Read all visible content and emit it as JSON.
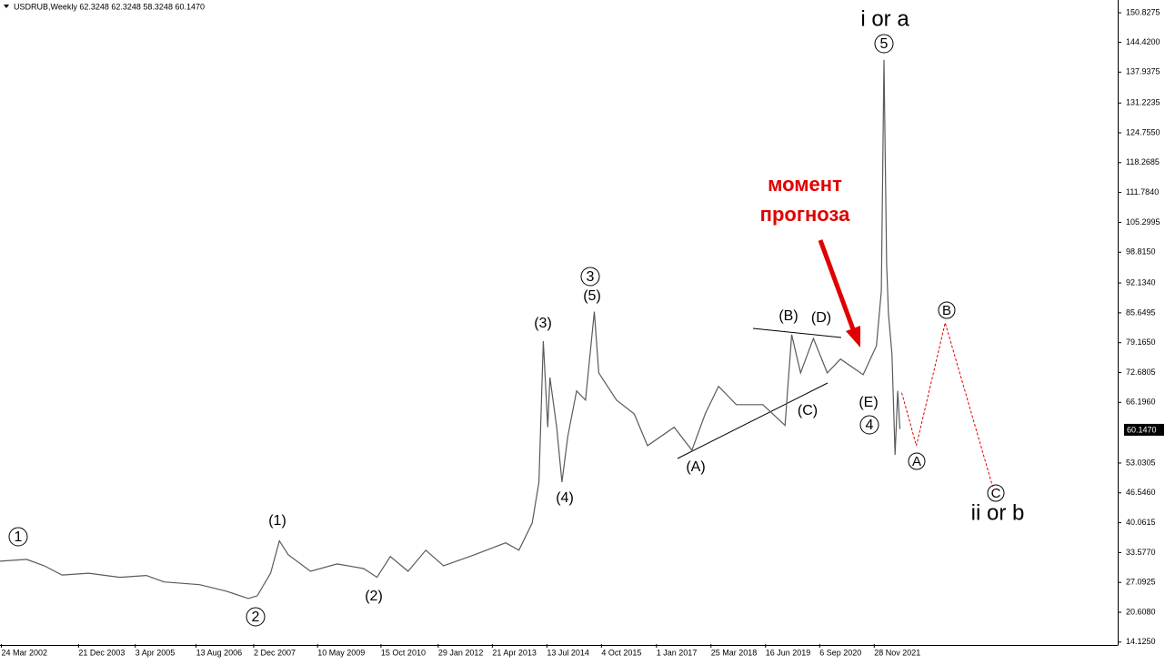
{
  "chart_data": {
    "type": "line",
    "header": "USDRUB,Weekly  62.3248 62.3248 58.3248 60.1470",
    "xlim": [
      2002.2,
      2027.4
    ],
    "ylim": [
      13.7,
      153.6
    ],
    "xticks": [
      {
        "value": 2002.23,
        "label": "24 Mar 2002"
      },
      {
        "value": 2003.97,
        "label": "21 Dec 2003"
      },
      {
        "value": 2005.25,
        "label": "3 Apr 2005"
      },
      {
        "value": 2006.62,
        "label": "13 Aug 2006"
      },
      {
        "value": 2007.92,
        "label": "2 Dec 2007"
      },
      {
        "value": 2009.36,
        "label": "10 May 2009"
      },
      {
        "value": 2010.79,
        "label": "15 Oct 2010"
      },
      {
        "value": 2012.08,
        "label": "29 Jan 2012"
      },
      {
        "value": 2013.3,
        "label": "21 Apr 2013"
      },
      {
        "value": 2014.53,
        "label": "13 Jul 2014"
      },
      {
        "value": 2015.76,
        "label": "4 Oct 2015"
      },
      {
        "value": 2017.0,
        "label": "1 Jan 2017"
      },
      {
        "value": 2018.23,
        "label": "25 Mar 2018"
      },
      {
        "value": 2019.46,
        "label": "16 Jun 2019"
      },
      {
        "value": 2020.68,
        "label": "6 Sep 2020"
      },
      {
        "value": 2021.91,
        "label": "28 Nov 2021"
      }
    ],
    "yticks": [
      {
        "value": 150.8275,
        "label": "150.8275"
      },
      {
        "value": 144.42,
        "label": "144.4200"
      },
      {
        "value": 137.9375,
        "label": "137.9375"
      },
      {
        "value": 131.2235,
        "label": "131.2235"
      },
      {
        "value": 124.755,
        "label": "124.7550"
      },
      {
        "value": 118.2685,
        "label": "118.2685"
      },
      {
        "value": 111.784,
        "label": "111.7840"
      },
      {
        "value": 105.2995,
        "label": "105.2995"
      },
      {
        "value": 98.815,
        "label": "98.8150"
      },
      {
        "value": 92.134,
        "label": "92.1340"
      },
      {
        "value": 85.6495,
        "label": "85.6495"
      },
      {
        "value": 79.165,
        "label": "79.1650"
      },
      {
        "value": 72.6805,
        "label": "72.6805"
      },
      {
        "value": 66.196,
        "label": "66.1960"
      },
      {
        "value": 53.0305,
        "label": "53.0305"
      },
      {
        "value": 46.546,
        "label": "46.5460"
      },
      {
        "value": 40.0615,
        "label": "40.0615"
      },
      {
        "value": 33.577,
        "label": "33.5770"
      },
      {
        "value": 27.0925,
        "label": "27.0925"
      },
      {
        "value": 20.608,
        "label": "20.6080"
      },
      {
        "value": 14.125,
        "label": "14.1250"
      }
    ],
    "current_price": {
      "value": 60.147,
      "label": "60.1470"
    },
    "series": [
      {
        "color": "#5a5a5a",
        "dashed": false,
        "x": [
          2002.2,
          2002.8,
          2003.2,
          2003.6,
          2004.2,
          2004.9,
          2005.5,
          2005.9,
          2006.7,
          2007.3,
          2007.8,
          2008.0,
          2008.3,
          2008.5,
          2008.7,
          2009.2,
          2009.8,
          2010.4,
          2010.7,
          2011.0,
          2011.4,
          2011.8,
          2012.2,
          2012.9,
          2013.6,
          2013.9,
          2014.2,
          2014.35,
          2014.45,
          2014.55,
          2014.6,
          2014.75,
          2014.87,
          2015.0,
          2015.2,
          2015.4,
          2015.6,
          2015.7,
          2016.1,
          2016.5,
          2016.8,
          2017.4,
          2017.8,
          2018.1,
          2018.4,
          2018.8,
          2019.4,
          2019.9,
          2020.05,
          2020.25,
          2020.54,
          2020.85,
          2021.15,
          2021.66,
          2021.96,
          2022.07,
          2022.13,
          2022.19,
          2022.23,
          2022.31,
          2022.38,
          2022.44,
          2022.49
        ],
        "values": [
          31.7,
          32.1,
          30.7,
          28.7,
          29.1,
          28.2,
          28.6,
          27.2,
          26.6,
          25.2,
          23.6,
          24.2,
          29.1,
          36.1,
          33.1,
          29.5,
          31.1,
          30.1,
          28.2,
          32.7,
          29.5,
          34.1,
          30.7,
          33.1,
          35.7,
          34.1,
          40.0,
          48.9,
          79.5,
          60.8,
          71.6,
          60.8,
          48.9,
          58.8,
          68.7,
          66.7,
          85.9,
          72.6,
          66.7,
          63.7,
          56.8,
          60.8,
          55.8,
          63.7,
          69.7,
          65.7,
          65.7,
          61.2,
          80.9,
          72.6,
          80.1,
          72.6,
          75.6,
          72.2,
          78.5,
          90.4,
          140.6,
          96.3,
          85.5,
          76.6,
          54.8,
          68.7,
          60.4
        ]
      },
      {
        "color": "#e00000",
        "dashed": true,
        "x": [
          2022.53,
          2022.86,
          2023.51,
          2024.58
        ],
        "values": [
          68.3,
          56.8,
          83.5,
          47.9
        ]
      }
    ],
    "annotations": [
      {
        "text": "1",
        "style": "circled"
      },
      {
        "text": "(1)",
        "style": "plain"
      },
      {
        "text": "2",
        "style": "circled"
      },
      {
        "text": "(2)",
        "style": "plain"
      },
      {
        "text": "(3)",
        "style": "plain"
      },
      {
        "text": "3",
        "style": "circled"
      },
      {
        "text": "(5)",
        "style": "plain"
      },
      {
        "text": "(4)",
        "style": "plain"
      },
      {
        "text": "(A)",
        "style": "plain"
      },
      {
        "text": "(B)",
        "style": "plain"
      },
      {
        "text": "(C)",
        "style": "plain"
      },
      {
        "text": "(D)",
        "style": "plain"
      },
      {
        "text": "(E)",
        "style": "plain"
      },
      {
        "text": "4",
        "style": "circled"
      },
      {
        "text": "5",
        "style": "circled"
      },
      {
        "text": "i or a",
        "style": "large"
      },
      {
        "text": "A",
        "style": "circled-small"
      },
      {
        "text": "B",
        "style": "circled-small"
      },
      {
        "text": "C",
        "style": "circled-small"
      },
      {
        "text": "ii or b",
        "style": "large"
      },
      {
        "text": "момент",
        "style": "red"
      },
      {
        "text": "прогноза",
        "style": "red"
      }
    ]
  }
}
